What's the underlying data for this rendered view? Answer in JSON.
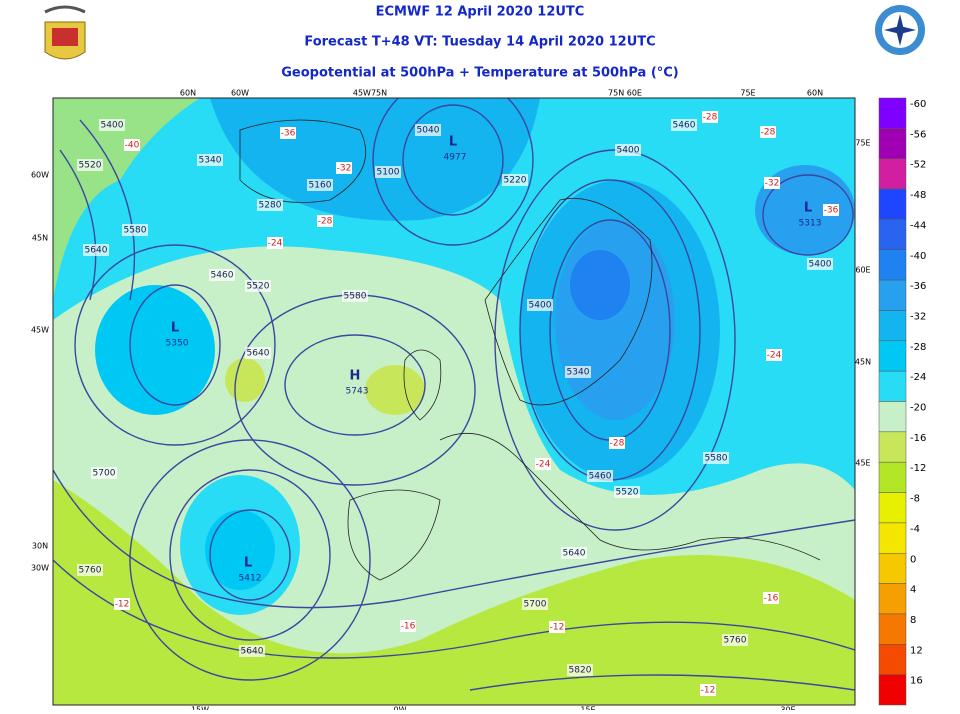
{
  "header": {
    "line1": "ECMWF 12 April 2020 12UTC",
    "line2": "Forecast T+48 VT: Tuesday 14 April 2020 12UTC",
    "line3": "Geopotential at 500hPa + Temperature at 500hPa (°C)"
  },
  "colorbar": {
    "entries": [
      {
        "label": "-60",
        "color": "#8000ff"
      },
      {
        "label": "-56",
        "color": "#a000b4"
      },
      {
        "label": "-52",
        "color": "#d21ea0"
      },
      {
        "label": "-48",
        "color": "#1e46ff"
      },
      {
        "label": "-44",
        "color": "#2864f0"
      },
      {
        "label": "-40",
        "color": "#1e82f0"
      },
      {
        "label": "-36",
        "color": "#28a0f0"
      },
      {
        "label": "-32",
        "color": "#14b4f0"
      },
      {
        "label": "-28",
        "color": "#00c8f5"
      },
      {
        "label": "-24",
        "color": "#28dcf5"
      },
      {
        "label": "-20",
        "color": "#c8f0c8"
      },
      {
        "label": "-16",
        "color": "#c8e65a"
      },
      {
        "label": "-12",
        "color": "#b4e628"
      },
      {
        "label": "-8",
        "color": "#e6f000"
      },
      {
        "label": "-4",
        "color": "#f5e600"
      },
      {
        "label": "0",
        "color": "#f5c800"
      },
      {
        "label": "4",
        "color": "#f5a000"
      },
      {
        "label": "8",
        "color": "#f57800"
      },
      {
        "label": "12",
        "color": "#f54b00"
      },
      {
        "label": "16",
        "color": "#f00000"
      }
    ]
  },
  "map": {
    "grid_labels": [
      "60N",
      "60W",
      "45W75N",
      "75N 60E",
      "75E",
      "60N",
      "60W",
      "45N",
      "45W",
      "30N",
      "30W",
      "75E",
      "60E",
      "45N",
      "45E",
      "15W",
      "0W",
      "15E",
      "30E"
    ],
    "contour_labels": [
      "5400",
      "5520",
      "5640",
      "5580",
      "5340",
      "5040",
      "5100",
      "5160",
      "5280",
      "5220",
      "5400",
      "5460",
      "5460",
      "5520",
      "5580",
      "5640",
      "5400",
      "5340",
      "5460",
      "5520",
      "5580",
      "5400",
      "5700",
      "5760",
      "5640",
      "5640",
      "5700",
      "5820",
      "5760"
    ],
    "temperature_labels": [
      "-36",
      "-32",
      "-28",
      "-24",
      "-40",
      "-28",
      "-28",
      "-32",
      "-36",
      "-24",
      "-28",
      "-24",
      "-12",
      "-16",
      "-12",
      "-16",
      "-12"
    ],
    "centers": [
      {
        "mark": "L",
        "value": "4977"
      },
      {
        "mark": "L",
        "value": "5350"
      },
      {
        "mark": "H",
        "value": "5743"
      },
      {
        "mark": "L",
        "value": "5412"
      },
      {
        "mark": "L",
        "value": "5313"
      }
    ]
  }
}
